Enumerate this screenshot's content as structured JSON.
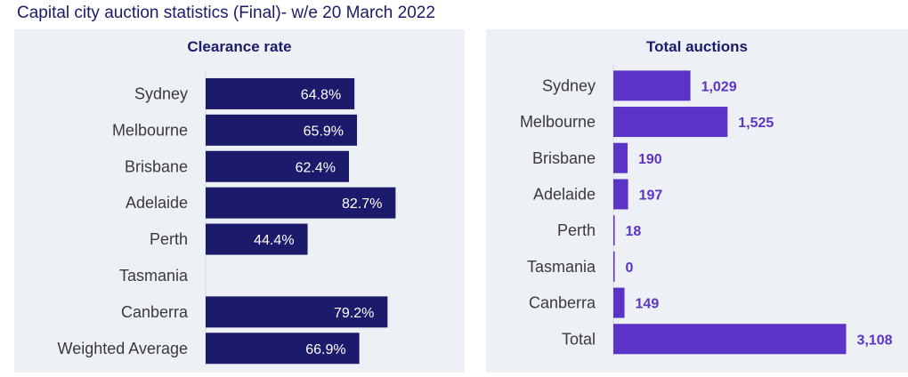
{
  "title": "Capital city auction statistics (Final)- w/e 20 March 2022",
  "colors": {
    "panel_bg": "#edf1f5",
    "clearance_bar": "#1b1a6b",
    "auctions_bar": "#5b33c7",
    "axis": "#d6dbe2"
  },
  "chart_data": [
    {
      "type": "bar",
      "orientation": "horizontal",
      "title": "Clearance rate",
      "categories": [
        "Sydney",
        "Melbourne",
        "Brisbane",
        "Adelaide",
        "Perth",
        "Tasmania",
        "Canberra",
        "Weighted Average"
      ],
      "values": [
        64.8,
        65.9,
        62.4,
        82.7,
        44.4,
        null,
        79.2,
        66.9
      ],
      "labels": [
        "64.8%",
        "65.9%",
        "62.4%",
        "82.7%",
        "44.4%",
        "",
        "79.2%",
        "66.9%"
      ],
      "xlim": [
        0,
        100
      ],
      "label_position": "inside-end",
      "grid": false,
      "legend": "none"
    },
    {
      "type": "bar",
      "orientation": "horizontal",
      "title": "Total auctions",
      "categories": [
        "Sydney",
        "Melbourne",
        "Brisbane",
        "Adelaide",
        "Perth",
        "Tasmania",
        "Canberra",
        "Total"
      ],
      "values": [
        1029,
        1525,
        190,
        197,
        18,
        0,
        149,
        3108
      ],
      "labels": [
        "1,029",
        "1,525",
        "190",
        "197",
        "18",
        "0",
        "149",
        "3,108"
      ],
      "xlim": [
        0,
        3150
      ],
      "label_position": "outside-end",
      "grid": false,
      "legend": "none"
    }
  ]
}
